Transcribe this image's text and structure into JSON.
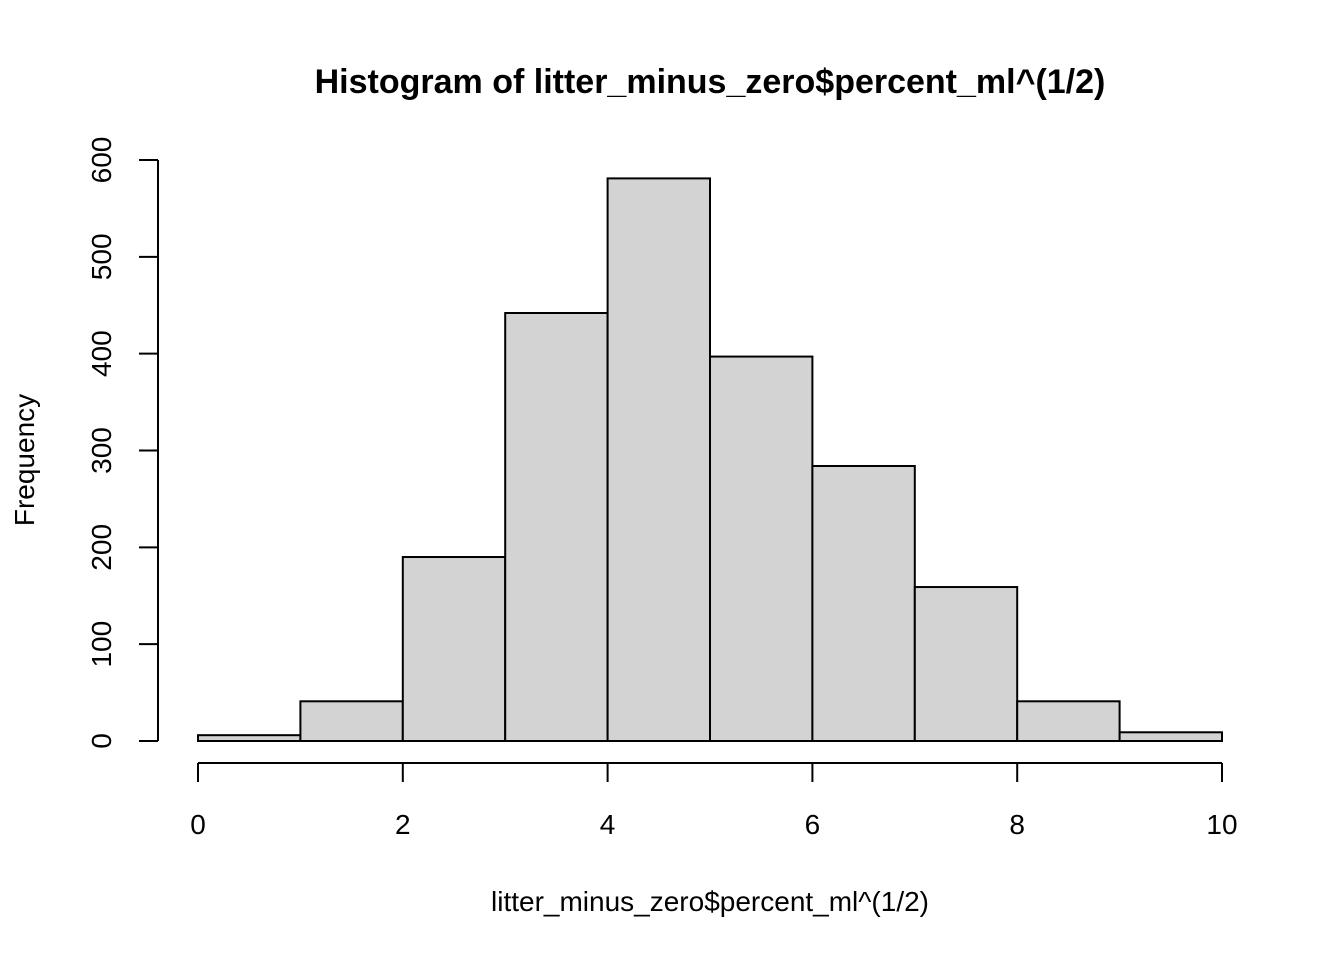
{
  "chart_data": {
    "type": "bar",
    "title": "Histogram of litter_minus_zero$percent_ml^(1/2)",
    "xlabel": "litter_minus_zero$percent_ml^(1/2)",
    "ylabel": "Frequency",
    "bin_edges": [
      0,
      1,
      2,
      3,
      4,
      5,
      6,
      7,
      8,
      9,
      10
    ],
    "values": [
      6,
      41,
      190,
      442,
      581,
      397,
      284,
      159,
      41,
      9
    ],
    "xlim": [
      0,
      10
    ],
    "ylim": [
      0,
      600
    ],
    "x_ticks": [
      "0",
      "2",
      "4",
      "6",
      "8",
      "10"
    ],
    "y_ticks": [
      "0",
      "100",
      "200",
      "300",
      "400",
      "500",
      "600"
    ],
    "bar_color": "#d3d3d3",
    "border_color": "#000000",
    "grid": false,
    "legend": "none"
  }
}
